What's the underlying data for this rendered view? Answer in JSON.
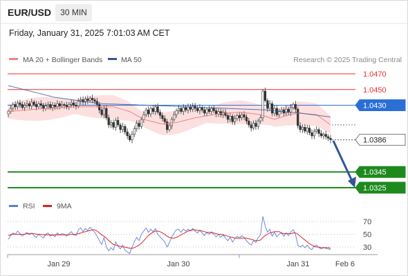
{
  "header": {
    "symbol": "EUR/USD",
    "interval": "30 MIN",
    "timestamp": "Friday, January 31, 2025 7:01:03 AM CET"
  },
  "legend": {
    "ma20": {
      "label": "MA 20 + Bollinger Bands",
      "color": "#f08080"
    },
    "ma50": {
      "label": "MA 50",
      "color": "#2f5597"
    },
    "copyright": "Research © 2025 Trading Central"
  },
  "rsi_legend": {
    "rsi": {
      "label": "RSI",
      "color": "#5b7fd6"
    },
    "ma9": {
      "label": "9MA",
      "color": "#dd2222"
    }
  },
  "levels": [
    {
      "value": 1.047,
      "label": "1.0470",
      "type": "resistance",
      "color": "#e83030"
    },
    {
      "value": 1.045,
      "label": "1.0450",
      "type": "resistance",
      "color": "#e83030"
    },
    {
      "value": 1.043,
      "label": "1.0430",
      "type": "pivot",
      "color": "#2b6fd6"
    },
    {
      "value": 1.0386,
      "label": "1.0386",
      "type": "last",
      "color": "#333333"
    },
    {
      "value": 1.0345,
      "label": "1.0345",
      "type": "support",
      "color": "#1e8a1e"
    },
    {
      "value": 1.0325,
      "label": "1.0325",
      "type": "support",
      "color": "#1e8a1e"
    }
  ],
  "x_labels": [
    "Jan 29",
    "Jan 30",
    "Jan 31",
    "Feb 6"
  ],
  "rsi_ticks": [
    "70",
    "50",
    "30"
  ],
  "chart_data": {
    "type": "candlestick",
    "instrument": "EUR/USD",
    "timeframe": "30 MIN",
    "price_range": [
      1.032,
      1.049
    ],
    "close": [
      1.0422,
      1.0426,
      1.0431,
      1.0428,
      1.0433,
      1.0431,
      1.0427,
      1.043,
      1.0432,
      1.0429,
      1.0434,
      1.0431,
      1.0428,
      1.0432,
      1.043,
      1.0426,
      1.0429,
      1.0431,
      1.0427,
      1.043,
      1.0428,
      1.0432,
      1.0429,
      1.0431,
      1.043,
      1.0428,
      1.0431,
      1.0433,
      1.043,
      1.0429,
      1.0435,
      1.0437,
      1.0434,
      1.0438,
      1.0436,
      1.0439,
      1.0437,
      1.0435,
      1.0431,
      1.0424,
      1.0418,
      1.0426,
      1.0414,
      1.0405,
      1.0408,
      1.0402,
      1.0411,
      1.0405,
      1.0399,
      1.0403,
      1.0396,
      1.0391,
      1.0386,
      1.0393,
      1.04,
      1.0407,
      1.0403,
      1.0412,
      1.0418,
      1.0424,
      1.0419,
      1.0426,
      1.0422,
      1.0428,
      1.0421,
      1.0417,
      1.0413,
      1.0409,
      1.0399,
      1.0404,
      1.0412,
      1.0418,
      1.0423,
      1.0426,
      1.0422,
      1.0427,
      1.0424,
      1.0428,
      1.0425,
      1.0429,
      1.0426,
      1.0423,
      1.0427,
      1.0424,
      1.042,
      1.0425,
      1.0422,
      1.0426,
      1.0423,
      1.0419,
      1.0422,
      1.0418,
      1.0421,
      1.0417,
      1.0412,
      1.0416,
      1.0409,
      1.0413,
      1.0417,
      1.0414,
      1.0418,
      1.0415,
      1.041,
      1.0405,
      1.0401,
      1.0407,
      1.0403,
      1.041,
      1.0414,
      1.0448,
      1.0436,
      1.0426,
      1.0432,
      1.042,
      1.0426,
      1.0418,
      1.0422,
      1.0424,
      1.042,
      1.0425,
      1.0421,
      1.0427,
      1.0431,
      1.0425,
      1.0404,
      1.0399,
      1.0402,
      1.0397,
      1.0401,
      1.0395,
      1.0391,
      1.0397,
      1.0399,
      1.0394,
      1.0391,
      1.0393,
      1.039,
      1.0388,
      1.0386
    ],
    "ma20_path": [
      [
        1.0422,
        0
      ],
      [
        1.0425,
        12
      ],
      [
        1.0428,
        30
      ],
      [
        1.0428,
        45
      ],
      [
        1.0422,
        52
      ],
      [
        1.0412,
        58
      ],
      [
        1.0406,
        66
      ],
      [
        1.0408,
        72
      ],
      [
        1.0414,
        80
      ],
      [
        1.042,
        92
      ],
      [
        1.0421,
        100
      ],
      [
        1.0418,
        108
      ],
      [
        1.0412,
        114
      ],
      [
        1.0416,
        118
      ],
      [
        1.042,
        124
      ],
      [
        1.0418,
        132
      ],
      [
        1.0405,
        138
      ]
    ],
    "ma50_path": [
      [
        1.0455,
        0
      ],
      [
        1.044,
        20
      ],
      [
        1.0432,
        40
      ],
      [
        1.043,
        60
      ],
      [
        1.0427,
        85
      ],
      [
        1.0424,
        110
      ],
      [
        1.042,
        125
      ],
      [
        1.0415,
        138
      ]
    ],
    "rsi_range": [
      20,
      80
    ],
    "rsi": [
      42,
      48,
      52,
      50,
      55,
      51,
      47,
      50,
      53,
      49,
      52,
      48,
      45,
      50,
      47,
      44,
      50,
      52,
      47,
      49,
      46,
      52,
      49,
      51,
      50,
      47,
      51,
      54,
      49,
      48,
      57,
      60,
      54,
      59,
      56,
      61,
      57,
      53,
      47,
      40,
      34,
      45,
      30,
      24,
      29,
      25,
      38,
      31,
      27,
      33,
      25,
      22,
      20,
      30,
      38,
      45,
      40,
      50,
      55,
      60,
      53,
      58,
      54,
      59,
      50,
      46,
      42,
      38,
      30,
      37,
      46,
      52,
      57,
      58,
      53,
      58,
      55,
      58,
      55,
      59,
      55,
      52,
      56,
      52,
      48,
      53,
      50,
      54,
      50,
      46,
      50,
      45,
      49,
      44,
      40,
      45,
      38,
      43,
      47,
      44,
      48,
      45,
      40,
      36,
      33,
      40,
      37,
      45,
      49,
      78,
      63,
      53,
      58,
      47,
      53,
      46,
      50,
      52,
      47,
      52,
      48,
      54,
      57,
      50,
      33,
      30,
      33,
      29,
      33,
      28,
      26,
      31,
      33,
      29,
      27,
      29,
      28,
      27,
      26
    ],
    "rsi_ma9": [
      48,
      49,
      50,
      50,
      50,
      50,
      50,
      50,
      51,
      51,
      51,
      51,
      50,
      50,
      50,
      49,
      49,
      49,
      49,
      49,
      49,
      49,
      49,
      49,
      49,
      49,
      49,
      50,
      50,
      50,
      51,
      52,
      53,
      54,
      55,
      56,
      57,
      57,
      55,
      52,
      49,
      47,
      44,
      40,
      37,
      34,
      33,
      32,
      31,
      30,
      30,
      29,
      28,
      28,
      29,
      31,
      33,
      36,
      40,
      44,
      48,
      51,
      53,
      55,
      55,
      54,
      52,
      50,
      47,
      45,
      44,
      44,
      45,
      47,
      49,
      51,
      53,
      55,
      56,
      57,
      57,
      56,
      56,
      55,
      54,
      53,
      53,
      52,
      52,
      51,
      50,
      50,
      49,
      48,
      47,
      46,
      45,
      44,
      44,
      44,
      44,
      44,
      44,
      43,
      42,
      41,
      40,
      40,
      41,
      45,
      48,
      50,
      52,
      53,
      54,
      54,
      54,
      52,
      51,
      51,
      51,
      51,
      52,
      52,
      50,
      47,
      44,
      41,
      38,
      35,
      33,
      31,
      30,
      30,
      29,
      29,
      29,
      29,
      28
    ]
  }
}
